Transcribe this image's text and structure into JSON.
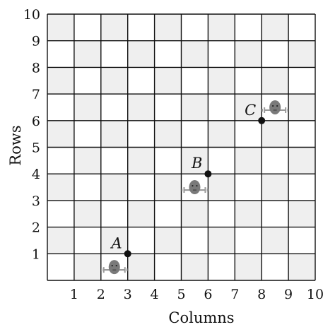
{
  "grid": {
    "cols": 10,
    "rows": 10,
    "shade_color": "#efefef",
    "line_color": "#111111",
    "background": "#ffffff"
  },
  "x_ticks": [
    "1",
    "2",
    "3",
    "4",
    "5",
    "6",
    "7",
    "8",
    "9",
    "10"
  ],
  "y_ticks": [
    "1",
    "2",
    "3",
    "4",
    "5",
    "6",
    "7",
    "8",
    "9",
    "10"
  ],
  "xlabel": "Columns",
  "ylabel": "Rows",
  "points": [
    {
      "label": "A",
      "x": 3,
      "y": 1
    },
    {
      "label": "B",
      "x": 6,
      "y": 4
    },
    {
      "label": "C",
      "x": 8,
      "y": 6
    }
  ],
  "figures": [
    {
      "icon": "face-figure-icon",
      "x": 2.5,
      "y": 0.5
    },
    {
      "icon": "face-figure-icon",
      "x": 5.5,
      "y": 3.5
    },
    {
      "icon": "face-figure-icon",
      "x": 8.5,
      "y": 6.5
    }
  ],
  "colors": {
    "point": "#111111",
    "figure_face": "#7a7a7a",
    "figure_arms": "#9a9a9a"
  }
}
